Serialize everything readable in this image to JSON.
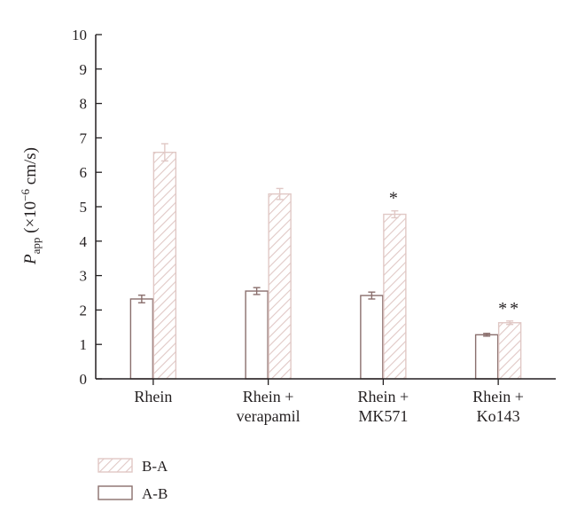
{
  "chart_data": {
    "type": "bar",
    "categories": [
      [
        "Rhein"
      ],
      [
        "Rhein +",
        "verapamil"
      ],
      [
        "Rhein +",
        "MK571"
      ],
      [
        "Rhein +",
        "Ko143"
      ]
    ],
    "series": [
      {
        "name": "A-B",
        "style": "open",
        "values": [
          2.32,
          2.55,
          2.42,
          1.28
        ],
        "errors": [
          0.11,
          0.1,
          0.1,
          0.04
        ]
      },
      {
        "name": "B-A",
        "style": "hatched",
        "values": [
          6.58,
          5.37,
          4.78,
          1.63
        ],
        "errors": [
          0.25,
          0.16,
          0.1,
          0.05
        ]
      }
    ],
    "annotations": [
      "",
      "",
      "*",
      "**"
    ],
    "ylabel": {
      "main": "P",
      "sub": "app",
      "unit_pre": " (×10",
      "exp": "−6",
      "unit_post": " cm/s)"
    },
    "ylim": [
      0,
      10
    ],
    "yticks": [
      0,
      1,
      2,
      3,
      4,
      5,
      6,
      7,
      8,
      9,
      10
    ],
    "legend": [
      {
        "label": "B-A",
        "style": "hatched"
      },
      {
        "label": "A-B",
        "style": "open"
      }
    ],
    "legend_position": "bottom-left",
    "grid": false,
    "colors": {
      "open_bar_edge": "#8a6f6d",
      "hatched_bar_edge": "#e0c8c5",
      "axis": "#231f20",
      "text": "#231f20"
    }
  }
}
